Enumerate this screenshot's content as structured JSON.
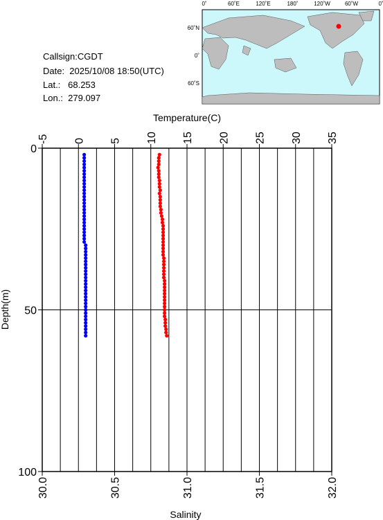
{
  "info": {
    "callsign": "Callsign:CGDT",
    "date": "Date:  2025/10/08 18:50(UTC)",
    "lat": "Lat.:   68.253",
    "lon": "Lon.:  279.097"
  },
  "map": {
    "top_labels": [
      "0˚",
      "60˚E",
      "120˚E",
      "180˚",
      "120˚W",
      "60˚W",
      "0˚"
    ],
    "left_labels": [
      "60˚N",
      "0˚",
      "60˚S"
    ]
  },
  "chart_data": {
    "type": "scatter",
    "xlabel_top": "Temperature(C)",
    "xlabel_bottom": "Salinity",
    "ylabel": "Depth(m)",
    "ylim": [
      0,
      100
    ],
    "yticks": [
      0,
      50,
      100
    ],
    "xlim_top": [
      -5,
      35
    ],
    "xticks_top": [
      -5,
      0,
      5,
      10,
      15,
      20,
      25,
      30,
      35
    ],
    "xgrid_top": [
      -2.5,
      2.5,
      7.5,
      12.5,
      17.5,
      22.5,
      27.5,
      32.5
    ],
    "xlim": [
      30.0,
      32.0
    ],
    "xticks": [
      {
        "value": 30,
        "label": "30.0"
      },
      30.5,
      {
        "value": 31,
        "label": "31.0"
      },
      31.5,
      {
        "value": 32,
        "label": "32.0"
      }
    ],
    "grid": true,
    "depth": [
      2,
      3,
      4,
      5,
      6,
      7,
      8,
      9,
      10,
      11,
      12,
      13,
      14,
      15,
      16,
      17,
      18,
      19,
      20,
      21,
      22,
      23,
      24,
      25,
      26,
      27,
      28,
      29,
      30,
      31,
      32,
      33,
      34,
      35,
      36,
      37,
      38,
      39,
      40,
      41,
      42,
      43,
      44,
      45,
      46,
      47,
      48,
      49,
      50,
      51,
      52,
      53,
      54,
      55,
      56,
      57,
      58
    ],
    "series": [
      {
        "name": "Temperature",
        "color": "#ff0000",
        "axis": "top",
        "values": [
          11.2,
          11.1,
          11.1,
          11.1,
          11.0,
          11.1,
          11.1,
          11.1,
          11.2,
          11.2,
          11.2,
          11.3,
          11.2,
          11.3,
          11.3,
          11.3,
          11.3,
          11.4,
          11.4,
          11.5,
          11.6,
          11.6,
          11.7,
          11.7,
          11.7,
          11.7,
          11.7,
          11.7,
          11.7,
          11.7,
          11.7,
          11.7,
          11.8,
          11.8,
          11.8,
          11.8,
          11.8,
          11.8,
          11.8,
          11.9,
          11.9,
          11.9,
          11.9,
          11.9,
          11.9,
          11.9,
          11.9,
          11.9,
          11.9,
          11.9,
          11.9,
          12.0,
          12.0,
          12.0,
          12.1,
          12.1,
          12.2
        ]
      },
      {
        "name": "Salinity",
        "color": "#0000ff",
        "axis": "bottom",
        "values": [
          30.29,
          30.29,
          30.29,
          30.29,
          30.29,
          30.29,
          30.29,
          30.29,
          30.29,
          30.29,
          30.29,
          30.29,
          30.29,
          30.29,
          30.29,
          30.29,
          30.29,
          30.29,
          30.29,
          30.29,
          30.29,
          30.29,
          30.29,
          30.29,
          30.29,
          30.29,
          30.29,
          30.29,
          30.3,
          30.3,
          30.3,
          30.3,
          30.3,
          30.3,
          30.3,
          30.3,
          30.3,
          30.3,
          30.3,
          30.3,
          30.3,
          30.3,
          30.3,
          30.3,
          30.3,
          30.3,
          30.3,
          30.3,
          30.3,
          30.3,
          30.3,
          30.3,
          30.3,
          30.3,
          30.3,
          30.3,
          30.3
        ]
      }
    ]
  }
}
